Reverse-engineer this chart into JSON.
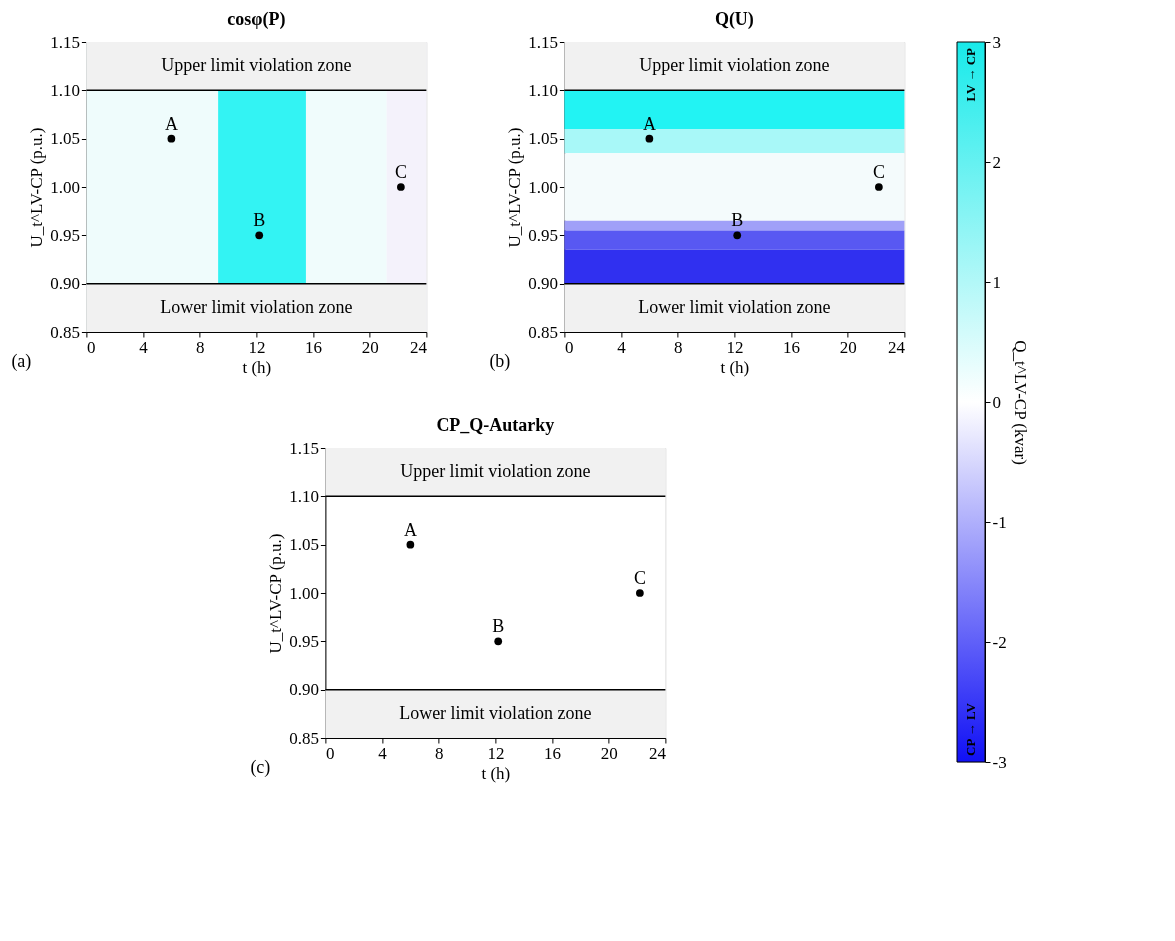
{
  "chart_data": [
    {
      "type": "scatter",
      "title": "cosφ(P)",
      "xlabel": "t (h)",
      "ylabel": "U_t^LV-CP (p.u.)",
      "xlim": [
        0,
        24
      ],
      "xticks": [
        0,
        4,
        8,
        12,
        16,
        20,
        24
      ],
      "ylim": [
        0.85,
        1.15
      ],
      "yticks": [
        0.85,
        {
          "value": 0.9,
          "label": "0.90"
        },
        0.95,
        {
          "value": 1.0,
          "label": "1.00"
        },
        1.05,
        {
          "value": 1.1,
          "label": "1.10"
        },
        1.15
      ],
      "series": [
        {
          "x": [
            6,
            12.2,
            22.2
          ],
          "values": [
            1.05,
            0.95,
            1.0
          ],
          "color": "#000000"
        }
      ],
      "marker": "circle",
      "grid": false,
      "bands": [
        {
          "axis": "x",
          "from": 0,
          "to": 9.3,
          "color": "#effcfc"
        },
        {
          "axis": "x",
          "from": 9.3,
          "to": 15.5,
          "color": "#33f3f3"
        },
        {
          "axis": "x",
          "from": 15.5,
          "to": 21.2,
          "color": "#f0fcfc"
        },
        {
          "axis": "x",
          "from": 21.2,
          "to": 24,
          "color": "#f4f2fb"
        },
        {
          "axis": "y",
          "from": 1.1,
          "to": 1.15,
          "label": "Upper limit violation zone",
          "color": "#f1f1f1"
        },
        {
          "axis": "y",
          "from": 0.85,
          "to": 0.9,
          "label": "Lower limit violation zone",
          "color": "#f1f1f1"
        }
      ],
      "ref_lines": [
        {
          "axis": "y",
          "value": 1.1,
          "color": "#000000"
        },
        {
          "axis": "y",
          "value": 0.9,
          "color": "#000000"
        }
      ],
      "annotations": [
        "(a)",
        {
          "text": "A",
          "x": 6,
          "y": 1.05
        },
        {
          "text": "B",
          "x": 12.2,
          "y": 0.95
        },
        {
          "text": "C",
          "x": 22.2,
          "y": 1.0
        }
      ]
    },
    {
      "type": "scatter",
      "title": "Q(U)",
      "xlabel": "t (h)",
      "ylabel": "U_t^LV-CP (p.u.)",
      "xlim": [
        0,
        24
      ],
      "xticks": [
        0,
        4,
        8,
        12,
        16,
        20,
        24
      ],
      "ylim": [
        0.85,
        1.15
      ],
      "yticks": [
        0.85,
        {
          "value": 0.9,
          "label": "0.90"
        },
        0.95,
        {
          "value": 1.0,
          "label": "1.00"
        },
        1.05,
        {
          "value": 1.1,
          "label": "1.10"
        },
        1.15
      ],
      "series": [
        {
          "x": [
            6,
            12.2,
            22.2
          ],
          "values": [
            1.05,
            0.95,
            1.0
          ],
          "color": "#000000"
        }
      ],
      "marker": "circle",
      "grid": false,
      "clim": [
        -3,
        3
      ],
      "cticks": [
        -3,
        -2,
        -1,
        0,
        1,
        2,
        3
      ],
      "clabel": "Q_t^LV-CP (kvar)",
      "bands": [
        {
          "axis": "y",
          "from": 1.06,
          "to": 1.1,
          "color": "#22f3f3"
        },
        {
          "axis": "y",
          "from": 1.035,
          "to": 1.06,
          "color": "#a8f8f8"
        },
        {
          "axis": "y",
          "from": 0.965,
          "to": 1.035,
          "color": "#f4fbfc"
        },
        {
          "axis": "y",
          "from": 0.955,
          "to": 0.965,
          "color": "#a0a0f8"
        },
        {
          "axis": "y",
          "from": 0.935,
          "to": 0.955,
          "color": "#5858f2"
        },
        {
          "axis": "y",
          "from": 0.9,
          "to": 0.935,
          "color": "#3030f0"
        },
        {
          "axis": "y",
          "from": 1.1,
          "to": 1.15,
          "label": "Upper limit violation zone",
          "color": "#f1f1f1"
        },
        {
          "axis": "y",
          "from": 0.85,
          "to": 0.9,
          "label": "Lower limit violation zone",
          "color": "#f1f1f1"
        }
      ],
      "ref_lines": [
        {
          "axis": "y",
          "value": 1.1,
          "color": "#000000"
        },
        {
          "axis": "y",
          "value": 0.9,
          "color": "#000000"
        }
      ],
      "annotations": [
        "(b)",
        "LV → CP",
        "CP → LV",
        {
          "text": "A",
          "x": 6,
          "y": 1.05
        },
        {
          "text": "B",
          "x": 12.2,
          "y": 0.95
        },
        {
          "text": "C",
          "x": 22.2,
          "y": 1.0
        }
      ]
    },
    {
      "type": "scatter",
      "title": "CP_Q-Autarky",
      "xlabel": "t (h)",
      "ylabel": "U_t^LV-CP (p.u.)",
      "xlim": [
        0,
        24
      ],
      "xticks": [
        0,
        4,
        8,
        12,
        16,
        20,
        24
      ],
      "ylim": [
        0.85,
        1.15
      ],
      "yticks": [
        0.85,
        {
          "value": 0.9,
          "label": "0.90"
        },
        0.95,
        {
          "value": 1.0,
          "label": "1.00"
        },
        1.05,
        {
          "value": 1.1,
          "label": "1.10"
        },
        1.15
      ],
      "series": [
        {
          "x": [
            6,
            12.2,
            22.2
          ],
          "values": [
            1.05,
            0.95,
            1.0
          ],
          "color": "#000000"
        }
      ],
      "marker": "circle",
      "grid": false,
      "bands": [
        {
          "axis": "y",
          "from": 1.1,
          "to": 1.15,
          "label": "Upper limit violation zone",
          "color": "#f1f1f1"
        },
        {
          "axis": "y",
          "from": 0.85,
          "to": 0.9,
          "label": "Lower limit violation zone",
          "color": "#f1f1f1"
        }
      ],
      "ref_lines": [
        {
          "axis": "y",
          "value": 1.1,
          "color": "#000000"
        },
        {
          "axis": "y",
          "value": 0.9,
          "color": "#000000"
        }
      ],
      "annotations": [
        "(c)",
        {
          "text": "A",
          "x": 6,
          "y": 1.05
        },
        {
          "text": "B",
          "x": 12.2,
          "y": 0.95
        },
        {
          "text": "C",
          "x": 22.2,
          "y": 1.0
        }
      ]
    }
  ]
}
